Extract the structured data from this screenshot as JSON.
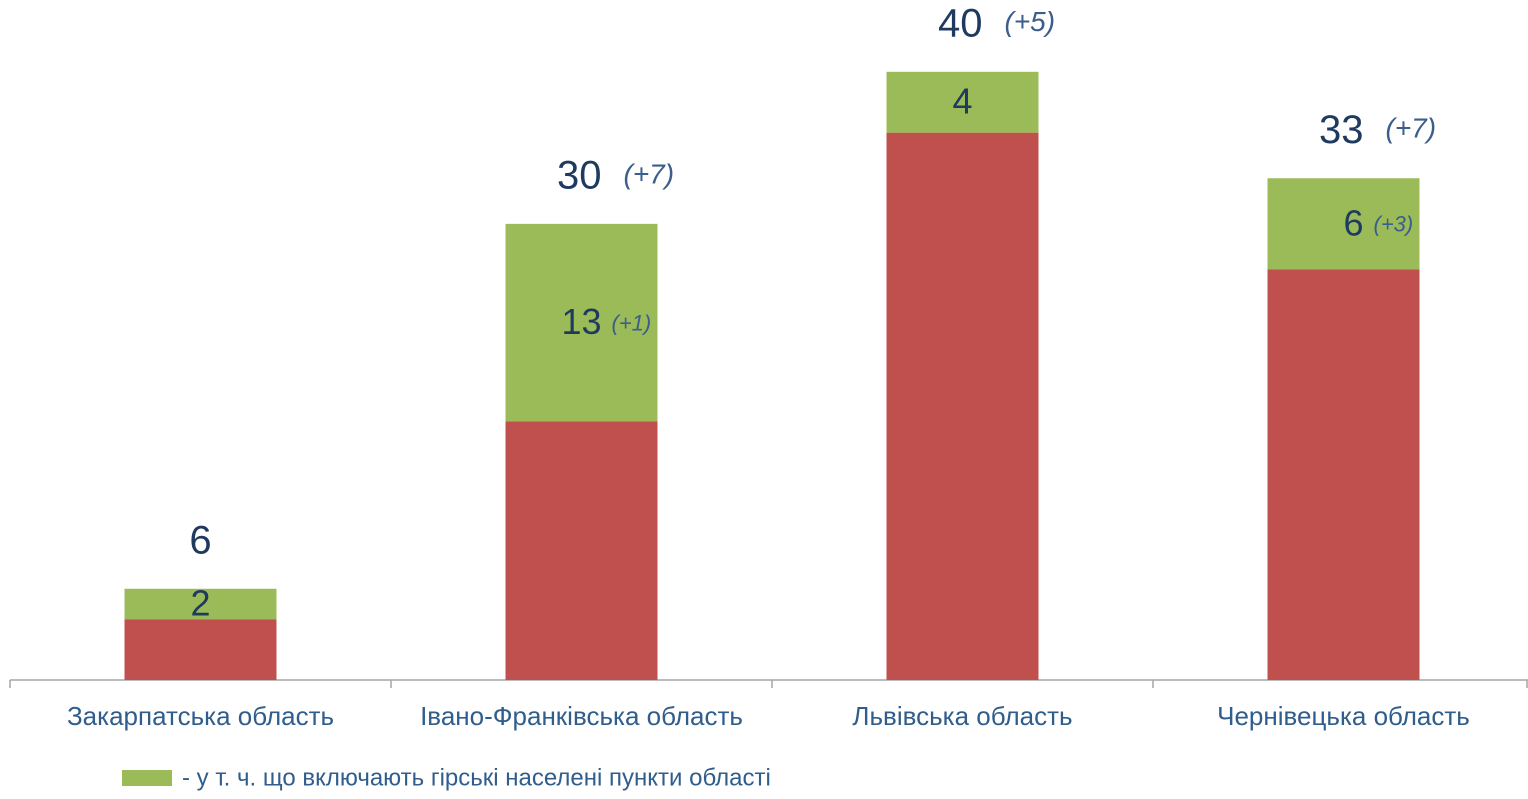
{
  "chart_data": {
    "type": "bar",
    "stacked": true,
    "categories": [
      "Закарпатська область",
      "Івано-Франківська область",
      "Львівська область",
      "Чернівецька область"
    ],
    "series": [
      {
        "color": "#c0504d",
        "values": [
          4,
          17,
          36,
          27
        ]
      },
      {
        "name": "- у т. ч. що включають гірські населені пункти області",
        "color": "#9bbb59",
        "values": [
          2,
          13,
          4,
          6
        ],
        "changes": [
          null,
          "(+1)",
          null,
          "(+3)"
        ]
      }
    ],
    "totals": [
      6,
      30,
      40,
      33
    ],
    "total_changes": [
      null,
      "(+7)",
      "(+5)",
      "(+7)"
    ],
    "ylim": [
      0,
      44
    ]
  }
}
